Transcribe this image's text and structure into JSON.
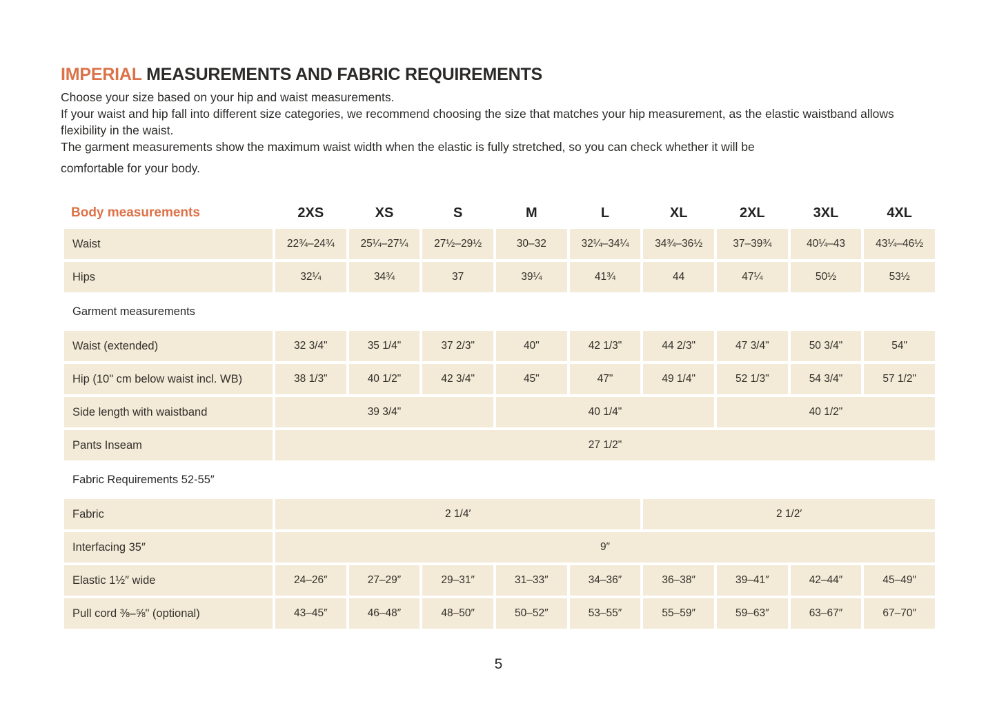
{
  "colors": {
    "accent": "#dc7248",
    "cell_bg": "#f3ead7",
    "text": "#2b2a28"
  },
  "page": {
    "title": {
      "highlight": "IMPERIAL",
      "rest": " MEASUREMENTS AND FABRIC REQUIREMENTS"
    },
    "intro": [
      "Choose your size based on your hip and waist measurements.",
      "If your waist and hip fall into different size categories, we recommend choosing the size that matches your hip measurement, as the elastic waistband allows flexibility in the waist.",
      "The garment measurements show the maximum waist width when the elastic is fully stretched, so you can check whether it will be",
      "comfortable for your body."
    ],
    "page_number": "5"
  },
  "table": {
    "header": {
      "label": "Body measurements",
      "sizes": [
        "2XS",
        "XS",
        "S",
        "M",
        "L",
        "XL",
        "2XL",
        "3XL",
        "4XL"
      ]
    },
    "rows": [
      {
        "label": "Waist",
        "cells": [
          {
            "t": "22¾–24¾"
          },
          {
            "t": "25¼–27¼"
          },
          {
            "t": "27½–29½"
          },
          {
            "t": "30–32"
          },
          {
            "t": "32¼–34¼"
          },
          {
            "t": "34¾–36½"
          },
          {
            "t": "37–39¾"
          },
          {
            "t": "40¼–43"
          },
          {
            "t": "43¼–46½"
          }
        ]
      },
      {
        "label": "Hips",
        "cells": [
          {
            "t": "32¼"
          },
          {
            "t": "34¾"
          },
          {
            "t": "37"
          },
          {
            "t": "39¼"
          },
          {
            "t": "41¾"
          },
          {
            "t": "44"
          },
          {
            "t": "47¼"
          },
          {
            "t": "50½"
          },
          {
            "t": "53½"
          }
        ]
      },
      {
        "section": "Garment measurements"
      },
      {
        "label": "Waist (extended)",
        "cells": [
          {
            "t": "32 3/4\""
          },
          {
            "t": "35 1/4\""
          },
          {
            "t": "37 2/3\""
          },
          {
            "t": "40\""
          },
          {
            "t": "42 1/3\""
          },
          {
            "t": "44 2/3\""
          },
          {
            "t": "47 3/4\""
          },
          {
            "t": "50 3/4\""
          },
          {
            "t": "54\""
          }
        ]
      },
      {
        "label": "Hip (10\" cm below waist incl. WB)",
        "cells": [
          {
            "t": "38 1/3\""
          },
          {
            "t": "40 1/2\""
          },
          {
            "t": "42 3/4\""
          },
          {
            "t": "45\""
          },
          {
            "t": "47\""
          },
          {
            "t": "49 1/4\""
          },
          {
            "t": "52 1/3\""
          },
          {
            "t": "54 3/4\""
          },
          {
            "t": "57 1/2\""
          }
        ]
      },
      {
        "label": "Side length with waistband",
        "cells": [
          {
            "t": "39 3/4\"",
            "span": 3
          },
          {
            "t": "40 1/4\"",
            "span": 3
          },
          {
            "t": "40 1/2\"",
            "span": 3
          }
        ]
      },
      {
        "label": "Pants Inseam",
        "cells": [
          {
            "t": "27 1/2\"",
            "span": 9
          }
        ]
      },
      {
        "section": "Fabric Requirements 52-55″"
      },
      {
        "label": "Fabric",
        "cells": [
          {
            "t": "2 1/4′",
            "span": 5
          },
          {
            "t": "2 1/2′",
            "span": 4
          }
        ]
      },
      {
        "label": "Interfacing 35″",
        "cells": [
          {
            "t": "9″",
            "span": 9
          }
        ]
      },
      {
        "label": "Elastic 1½″ wide",
        "cells": [
          {
            "t": "24–26″"
          },
          {
            "t": "27–29″"
          },
          {
            "t": "29–31″"
          },
          {
            "t": "31–33″"
          },
          {
            "t": "34–36″"
          },
          {
            "t": "36–38″"
          },
          {
            "t": "39–41″"
          },
          {
            "t": "42–44″"
          },
          {
            "t": "45–49″"
          }
        ]
      },
      {
        "label": "Pull cord ⅜–⅝\" (optional)",
        "cells": [
          {
            "t": "43–45″"
          },
          {
            "t": "46–48″"
          },
          {
            "t": "48–50″"
          },
          {
            "t": "50–52″"
          },
          {
            "t": "53–55″"
          },
          {
            "t": "55–59″"
          },
          {
            "t": "59–63″"
          },
          {
            "t": "63–67″"
          },
          {
            "t": "67–70″"
          }
        ]
      }
    ]
  }
}
